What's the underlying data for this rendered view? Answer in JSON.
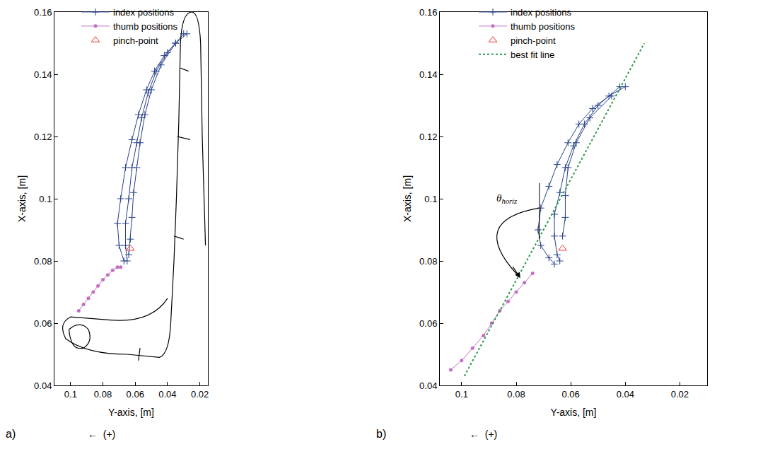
{
  "chart_data": [
    {
      "type": "scatter",
      "panel": "a)",
      "xlabel": "Y-axis, [m]",
      "ylabel": "X-axis, [m]",
      "axis_note": "←  (+)",
      "xlim": [
        0.11,
        0.015
      ],
      "ylim": [
        0.04,
        0.16
      ],
      "xticks": [
        0.1,
        0.08,
        0.06,
        0.04,
        0.02
      ],
      "yticks": [
        0.04,
        0.06,
        0.08,
        0.1,
        0.12,
        0.14,
        0.16
      ],
      "grid": false,
      "legend": "upper left",
      "series": [
        {
          "name": "index positions",
          "color": "#27408b",
          "marker": "cross",
          "line_style": "solid",
          "x": [
            0.028,
            0.035,
            0.042,
            0.048,
            0.053,
            0.058,
            0.062,
            0.066,
            0.069,
            0.071,
            0.07,
            0.067,
            null,
            0.03,
            0.04,
            0.047,
            0.052,
            0.056,
            0.059,
            0.062,
            0.064,
            0.066,
            0.066,
            0.065,
            null,
            0.035,
            0.044,
            0.05,
            0.054,
            0.057,
            0.059,
            0.061,
            0.062,
            0.063,
            0.064
          ],
          "values": [
            0.153,
            0.15,
            0.146,
            0.141,
            0.135,
            0.127,
            0.119,
            0.11,
            0.1,
            0.092,
            0.085,
            0.08,
            null,
            0.153,
            0.147,
            0.141,
            0.134,
            0.126,
            0.118,
            0.11,
            0.1,
            0.092,
            0.085,
            0.08,
            null,
            0.15,
            0.143,
            0.135,
            0.127,
            0.118,
            0.11,
            0.102,
            0.094,
            0.087,
            0.082
          ]
        },
        {
          "name": "thumb positions",
          "color": "#c36ec3",
          "marker": "circle",
          "line_style": "solid",
          "x": [
            0.095,
            0.092,
            0.089,
            0.086,
            0.083,
            0.08,
            0.077,
            0.074,
            0.071,
            0.069
          ],
          "values": [
            0.064,
            0.066,
            0.068,
            0.07,
            0.072,
            0.074,
            0.0755,
            0.077,
            0.078,
            0.078
          ]
        },
        {
          "name": "pinch-point",
          "color": "#e8322b",
          "marker": "triangle",
          "line_style": "none",
          "x": [
            0.063
          ],
          "values": [
            0.084
          ]
        }
      ]
    },
    {
      "type": "scatter",
      "panel": "b)",
      "xlabel": "Y-axis, [m]",
      "ylabel": "X-axis, [m]",
      "axis_note": "←  (+)",
      "xlim": [
        0.108,
        0.01
      ],
      "ylim": [
        0.04,
        0.16
      ],
      "xticks": [
        0.1,
        0.08,
        0.06,
        0.04,
        0.02
      ],
      "yticks": [
        0.04,
        0.06,
        0.08,
        0.1,
        0.12,
        0.14,
        0.16
      ],
      "grid": false,
      "legend": "upper left",
      "annotations": [
        {
          "text": "θ",
          "subscript": "horiz"
        }
      ],
      "series": [
        {
          "name": "index positions",
          "color": "#27408b",
          "marker": "cross",
          "line_style": "solid",
          "x": [
            0.04,
            0.046,
            0.052,
            0.057,
            0.061,
            0.065,
            0.068,
            0.071,
            0.072,
            0.071,
            0.068,
            0.066,
            null,
            0.042,
            0.05,
            0.055,
            0.059,
            0.062,
            0.064,
            0.066,
            0.066,
            0.065,
            0.064,
            null,
            0.045,
            0.053,
            0.058,
            0.061,
            0.062,
            0.062,
            0.063
          ],
          "values": [
            0.136,
            0.133,
            0.129,
            0.124,
            0.118,
            0.111,
            0.104,
            0.097,
            0.09,
            0.085,
            0.081,
            0.079,
            null,
            0.136,
            0.13,
            0.124,
            0.117,
            0.11,
            0.102,
            0.095,
            0.088,
            0.082,
            0.08,
            null,
            0.133,
            0.126,
            0.118,
            0.11,
            0.101,
            0.094,
            0.088
          ]
        },
        {
          "name": "thumb positions",
          "color": "#c36ec3",
          "marker": "circle",
          "line_style": "solid",
          "x": [
            0.104,
            0.1,
            0.096,
            0.092,
            0.089,
            0.086,
            0.083,
            0.08,
            0.077,
            0.074
          ],
          "values": [
            0.045,
            0.048,
            0.052,
            0.056,
            0.06,
            0.064,
            0.067,
            0.07,
            0.073,
            0.076
          ]
        },
        {
          "name": "pinch-point",
          "color": "#e8322b",
          "marker": "triangle",
          "line_style": "none",
          "x": [
            0.063
          ],
          "values": [
            0.084
          ]
        },
        {
          "name": "best fit line",
          "color": "#2e9a4a",
          "marker": "none",
          "line_style": "dotted",
          "x": [
            0.099,
            0.033
          ],
          "values": [
            0.043,
            0.15
          ]
        }
      ]
    }
  ]
}
